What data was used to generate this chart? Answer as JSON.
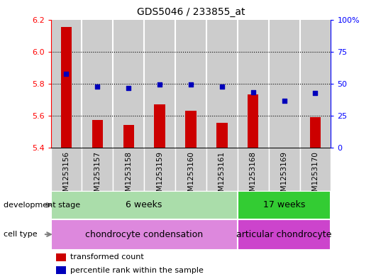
{
  "title": "GDS5046 / 233855_at",
  "samples": [
    "GSM1253156",
    "GSM1253157",
    "GSM1253158",
    "GSM1253159",
    "GSM1253160",
    "GSM1253161",
    "GSM1253168",
    "GSM1253169",
    "GSM1253170"
  ],
  "bar_values": [
    6.155,
    5.575,
    5.545,
    5.67,
    5.63,
    5.555,
    5.735,
    5.402,
    5.59
  ],
  "bar_base": 5.4,
  "dot_values_pct": [
    57.5,
    47.5,
    46.5,
    49.5,
    49.5,
    47.5,
    43.5,
    36.5,
    42.5
  ],
  "left_ylim": [
    5.4,
    6.2
  ],
  "left_yticks": [
    5.4,
    5.6,
    5.8,
    6.0,
    6.2
  ],
  "right_ylim": [
    0,
    100
  ],
  "right_yticks": [
    0,
    25,
    50,
    75,
    100
  ],
  "right_yticklabels": [
    "0",
    "25",
    "50",
    "75",
    "100%"
  ],
  "bar_color": "#cc0000",
  "dot_color": "#0000bb",
  "background_color": "#ffffff",
  "sample_bg_color": "#cccccc",
  "col_separator_color": "#ffffff",
  "development_stage_label": "development stage",
  "dev_stage_groups": [
    {
      "label": "6 weeks",
      "start": 0,
      "end": 5,
      "color": "#aaddaa"
    },
    {
      "label": "17 weeks",
      "start": 6,
      "end": 8,
      "color": "#33cc33"
    }
  ],
  "cell_type_label": "cell type",
  "cell_type_groups": [
    {
      "label": "chondrocyte condensation",
      "start": 0,
      "end": 5,
      "color": "#dd88dd"
    },
    {
      "label": "articular chondrocyte",
      "start": 6,
      "end": 8,
      "color": "#cc44cc"
    }
  ],
  "legend_items": [
    {
      "label": "transformed count",
      "color": "#cc0000"
    },
    {
      "label": "percentile rank within the sample",
      "color": "#0000bb"
    }
  ]
}
